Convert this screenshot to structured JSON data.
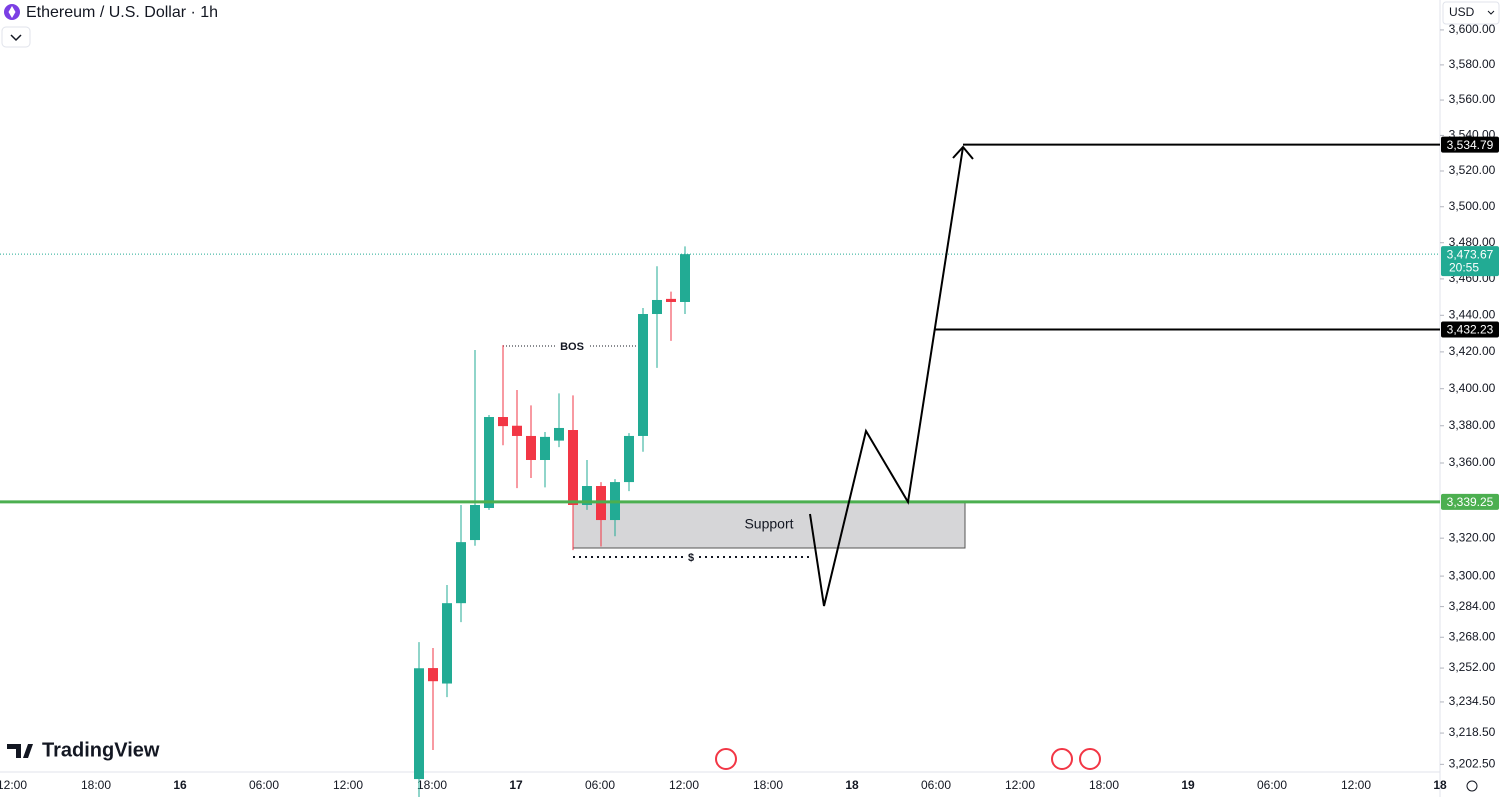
{
  "chart_data": {
    "type": "candlestick",
    "title": "Ethereum / U.S. Dollar · 1h",
    "currency": "USD",
    "watermark": "TradingView",
    "log_scale": true,
    "up_color": "#22ab94",
    "down_color": "#f23645",
    "ylim": [
      3198.6,
      3617.2
    ],
    "yticks": [
      {
        "value": 3202.5,
        "label": "3,202.50"
      },
      {
        "value": 3218.5,
        "label": "3,218.50"
      },
      {
        "value": 3234.5,
        "label": "3,234.50"
      },
      {
        "value": 3252,
        "label": "3,252.00"
      },
      {
        "value": 3268,
        "label": "3,268.00"
      },
      {
        "value": 3284,
        "label": "3,284.00"
      },
      {
        "value": 3300,
        "label": "3,300.00"
      },
      {
        "value": 3320,
        "label": "3,320.00"
      },
      {
        "value": 3360,
        "label": "3,360.00"
      },
      {
        "value": 3380,
        "label": "3,380.00"
      },
      {
        "value": 3400,
        "label": "3,400.00"
      },
      {
        "value": 3420,
        "label": "3,420.00"
      },
      {
        "value": 3440,
        "label": "3,440.00"
      },
      {
        "value": 3460,
        "label": "3,460.00"
      },
      {
        "value": 3480,
        "label": "3,480.00"
      },
      {
        "value": 3500,
        "label": "3,500.00"
      },
      {
        "value": 3520,
        "label": "3,520.00"
      },
      {
        "value": 3540,
        "label": "3,540.00"
      },
      {
        "value": 3560,
        "label": "3,560.00"
      },
      {
        "value": 3580,
        "label": "3,580.00"
      },
      {
        "value": 3600,
        "label": "3,600.00"
      }
    ],
    "xticks": [
      "12:00",
      "18:00",
      "16",
      "06:00",
      "12:00",
      "18:00",
      "17",
      "06:00",
      "12:00",
      "18:00",
      "18",
      "06:00",
      "12:00",
      "18:00",
      "19",
      "06:00",
      "12:00",
      "18"
    ],
    "open": [
      3195,
      3252,
      3244,
      3285.8,
      3319,
      3336,
      3384.7,
      3380,
      3374.5,
      3361.6,
      3372,
      3377.7,
      3337.6,
      3347.7,
      3329.6,
      3349.8,
      3374.5,
      3440.7,
      3449,
      3447.3
    ],
    "high": [
      3265.5,
      3262.4,
      3295.3,
      3337.6,
      3421,
      3385.8,
      3423.7,
      3399.3,
      3391,
      3376.6,
      3397.5,
      3396.4,
      3361.6,
      3349.8,
      3351.4,
      3376,
      3444,
      3467,
      3453,
      3478
    ],
    "low": [
      3185,
      3209.8,
      3237,
      3275.9,
      3316,
      3335,
      3369.5,
      3346.6,
      3352,
      3347,
      3368.5,
      3313.7,
      3335,
      3315.6,
      3321,
      3345,
      3366,
      3411.3,
      3426,
      3440.7
    ],
    "close": [
      3251.9,
      3245.2,
      3285.8,
      3317.9,
      3337.6,
      3384.7,
      3379.8,
      3374.5,
      3361.6,
      3374,
      3378.8,
      3337.6,
      3347.7,
      3329.6,
      3349.8,
      3374.5,
      3440.7,
      3448.4,
      3447.3,
      3473.67
    ],
    "current_price": {
      "value": 3473.67,
      "label": "3,473.67",
      "countdown": "20:55"
    },
    "levels": [
      {
        "value": 3534.79,
        "label": "3,534.79"
      },
      {
        "value": 3432.23,
        "label": "3,432.23"
      }
    ],
    "support": {
      "value": 3339.25,
      "label": "3,339.25",
      "text": "Support"
    },
    "annotations": [
      "BOS",
      "$"
    ]
  }
}
